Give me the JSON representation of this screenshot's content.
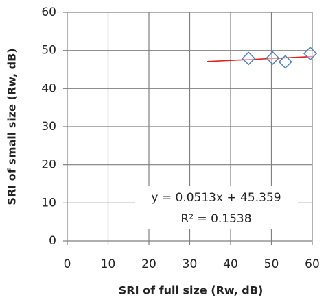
{
  "chart_data": {
    "type": "scatter",
    "x_label": "SRI of full size (Rw, dB)",
    "y_label": "SRI of small size (Rw, dB)",
    "annotations": [
      "y = 0.0513x + 45.359",
      "R² = 0.1538"
    ],
    "xlim": [
      0,
      60
    ],
    "xticks": [
      0,
      10,
      20,
      30,
      40,
      50,
      60
    ],
    "ylim": [
      0,
      60
    ],
    "yticks": [
      0,
      10,
      20,
      30,
      40,
      50,
      60
    ],
    "grid": true,
    "series": [
      {
        "x": [
          44.4,
          50.3,
          53.4,
          59.5
        ],
        "values": [
          47.9,
          48.0,
          47.0,
          49.2
        ],
        "color": "#4f81bd",
        "marker": "diamond"
      }
    ],
    "trendline": {
      "x": [
        34.3,
        60
      ],
      "values": [
        47.1,
        48.4
      ],
      "color": "#e02020"
    }
  }
}
